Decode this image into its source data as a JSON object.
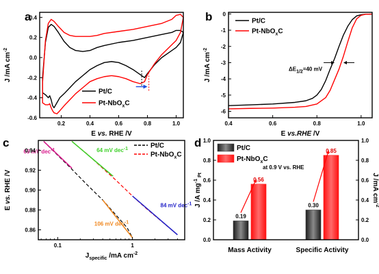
{
  "chart_data": [
    {
      "id": "a",
      "type": "line",
      "panel_label": "a",
      "xlabel": "E vs. RHE /V",
      "ylabel": "J /mA cm-2",
      "xlim": [
        0.05,
        1.05
      ],
      "ylim": [
        -0.6,
        0.45
      ],
      "xticks": [
        0.2,
        0.4,
        0.6,
        0.8,
        1.0
      ],
      "xtick_labels": [
        "0.2",
        "0.4",
        "0.6",
        "0.8",
        "1.0"
      ],
      "yticks": [
        -0.6,
        -0.4,
        -0.2,
        0.0,
        0.2,
        0.4
      ],
      "ytick_labels": [
        "-0.6",
        "-0.4",
        "-0.2",
        "0.0",
        "0.2",
        "0.4"
      ],
      "legend_position": "bottom-right",
      "series": [
        {
          "name": "Pt/C",
          "color": "#000000",
          "x": [
            0.07,
            0.09,
            0.11,
            0.13,
            0.15,
            0.18,
            0.22,
            0.26,
            0.3,
            0.35,
            0.4,
            0.45,
            0.5,
            0.6,
            0.7,
            0.8,
            0.9,
            0.97,
            1.0,
            1.03,
            1.05,
            1.03,
            1.0,
            0.95,
            0.9,
            0.85,
            0.8,
            0.78,
            0.75,
            0.7,
            0.65,
            0.6,
            0.55,
            0.5,
            0.45,
            0.4,
            0.35,
            0.3,
            0.26,
            0.22,
            0.19,
            0.17,
            0.15,
            0.14,
            0.13,
            0.12,
            0.11,
            0.09,
            0.07,
            0.07
          ],
          "y": [
            -0.2,
            0.15,
            0.3,
            0.33,
            0.31,
            0.25,
            0.16,
            0.1,
            0.07,
            0.06,
            0.07,
            0.1,
            0.12,
            0.15,
            0.17,
            0.2,
            0.23,
            0.25,
            0.27,
            0.27,
            0.25,
            0.15,
            0.1,
            0.05,
            0.0,
            -0.07,
            -0.16,
            -0.2,
            -0.17,
            -0.12,
            -0.08,
            -0.05,
            -0.04,
            -0.05,
            -0.08,
            -0.12,
            -0.18,
            -0.24,
            -0.3,
            -0.36,
            -0.4,
            -0.45,
            -0.5,
            -0.48,
            -0.42,
            -0.38,
            -0.4,
            -0.37,
            -0.35,
            -0.2
          ]
        },
        {
          "name": "Pt-NbOxC",
          "color": "#ff0000",
          "x": [
            0.07,
            0.09,
            0.11,
            0.13,
            0.15,
            0.18,
            0.22,
            0.26,
            0.3,
            0.35,
            0.4,
            0.45,
            0.5,
            0.6,
            0.7,
            0.8,
            0.9,
            0.97,
            1.0,
            1.03,
            1.05,
            1.03,
            1.0,
            0.95,
            0.9,
            0.85,
            0.8,
            0.78,
            0.75,
            0.7,
            0.65,
            0.6,
            0.55,
            0.5,
            0.45,
            0.4,
            0.35,
            0.3,
            0.26,
            0.22,
            0.19,
            0.17,
            0.15,
            0.14,
            0.13,
            0.12,
            0.11,
            0.09,
            0.07,
            0.07
          ],
          "y": [
            -0.25,
            0.17,
            0.34,
            0.38,
            0.36,
            0.31,
            0.25,
            0.22,
            0.21,
            0.21,
            0.21,
            0.22,
            0.24,
            0.26,
            0.28,
            0.31,
            0.34,
            0.38,
            0.42,
            0.43,
            0.4,
            0.25,
            0.17,
            0.1,
            0.03,
            -0.06,
            -0.17,
            -0.24,
            -0.26,
            -0.24,
            -0.21,
            -0.19,
            -0.18,
            -0.19,
            -0.21,
            -0.24,
            -0.3,
            -0.36,
            -0.42,
            -0.48,
            -0.53,
            -0.56,
            -0.55,
            -0.53,
            -0.5,
            -0.46,
            -0.47,
            -0.47,
            -0.45,
            -0.25
          ]
        }
      ],
      "markers": [
        {
          "x": 0.76,
          "y_range": [
            -0.28,
            -0.13
          ],
          "color": "#000000"
        },
        {
          "x": 0.81,
          "y_range": [
            -0.33,
            -0.16
          ],
          "color": "#ff0000"
        }
      ],
      "arrow": {
        "x_from": 0.72,
        "x_to": 0.8,
        "y": -0.29,
        "color": "#1f4fe0"
      }
    },
    {
      "id": "b",
      "type": "line",
      "panel_label": "b",
      "xlabel": "E vs.RHE /V",
      "ylabel": "J /mA cm-2",
      "xlim": [
        0.4,
        1.05
      ],
      "ylim": [
        -6.4,
        0.1
      ],
      "xticks": [
        0.4,
        0.6,
        0.8,
        1.0
      ],
      "xtick_labels": [
        "0.4",
        "0.6",
        "0.8",
        "1.0"
      ],
      "yticks": [
        -6,
        -5,
        -4,
        -3,
        -2,
        -1,
        0
      ],
      "ytick_labels": [
        "-6",
        "-5",
        "-4",
        "-3",
        "-2",
        "-1",
        "0"
      ],
      "legend_position": "top-left",
      "annotation": "ΔE1/2=40 mV",
      "annotation_y": -3.0,
      "e_half": [
        0.88,
        0.92
      ],
      "series": [
        {
          "name": "Pt/C",
          "color": "#000000",
          "x": [
            0.4,
            0.5,
            0.6,
            0.7,
            0.75,
            0.78,
            0.8,
            0.82,
            0.84,
            0.86,
            0.88,
            0.9,
            0.92,
            0.94,
            0.96,
            0.98,
            1.0,
            1.02,
            1.05
          ],
          "y": [
            -5.65,
            -5.6,
            -5.55,
            -5.45,
            -5.35,
            -5.2,
            -5.0,
            -4.65,
            -4.1,
            -3.4,
            -2.75,
            -2.0,
            -1.3,
            -0.75,
            -0.35,
            -0.12,
            -0.05,
            -0.02,
            -0.01
          ]
        },
        {
          "name": "Pt-NbOxC",
          "color": "#ff0000",
          "x": [
            0.4,
            0.5,
            0.6,
            0.7,
            0.75,
            0.8,
            0.84,
            0.86,
            0.88,
            0.9,
            0.92,
            0.94,
            0.96,
            0.98,
            1.0,
            1.02,
            1.05
          ],
          "y": [
            -5.85,
            -5.82,
            -5.8,
            -5.75,
            -5.7,
            -5.55,
            -5.15,
            -4.7,
            -4.05,
            -3.4,
            -2.6,
            -1.7,
            -0.85,
            -0.3,
            -0.08,
            -0.02,
            -0.01
          ]
        }
      ]
    },
    {
      "id": "c",
      "type": "line",
      "panel_label": "c",
      "xlabel": "Jspecific /mA cm-2",
      "ylabel": "E vs. RHE /V",
      "xscale": "log",
      "xlim": [
        0.055,
        5.0
      ],
      "ylim": [
        0.85,
        0.95
      ],
      "xticks": [
        0.1,
        1
      ],
      "xtick_labels": [
        "0.1",
        "1"
      ],
      "yticks": [
        0.86,
        0.88,
        0.9,
        0.92,
        0.94
      ],
      "ytick_labels": [
        "0.86",
        "0.88",
        "0.90",
        "0.92",
        "0.94"
      ],
      "legend_position": "top-right",
      "series": [
        {
          "name": "Pt/C",
          "color": "#000000",
          "dash": true,
          "x": [
            0.065,
            0.1,
            0.15,
            0.25,
            0.4,
            0.6,
            0.85,
            1.0
          ],
          "y": [
            0.949,
            0.935,
            0.922,
            0.905,
            0.89,
            0.875,
            0.862,
            0.852
          ]
        },
        {
          "name": "Pt-NbOxC",
          "color": "#ff0000",
          "dash": true,
          "x": [
            0.155,
            0.25,
            0.4,
            0.6,
            1.0,
            1.5,
            2.5,
            4.0
          ],
          "y": [
            0.949,
            0.936,
            0.922,
            0.91,
            0.894,
            0.882,
            0.868,
            0.855
          ]
        }
      ],
      "fits": [
        {
          "label": "69 mV dec-1",
          "color": "#d81b8c",
          "x": [
            0.065,
            0.155
          ],
          "y": [
            0.949,
            0.922
          ]
        },
        {
          "label": "106 mV dec-1",
          "color": "#f08a24",
          "x": [
            0.4,
            1.0
          ],
          "y": [
            0.89,
            0.852
          ]
        },
        {
          "label": "64 mV dec-1",
          "color": "#3fd02a",
          "x": [
            0.155,
            0.55
          ],
          "y": [
            0.949,
            0.914
          ]
        },
        {
          "label": "84 mV dec-1",
          "color": "#2323c8",
          "x": [
            1.0,
            4.0
          ],
          "y": [
            0.894,
            0.855
          ]
        }
      ]
    },
    {
      "id": "d",
      "type": "bar",
      "panel_label": "d",
      "categories": [
        "Mass Activity",
        "Specific Activity"
      ],
      "ylabel": "J /A mg-1 Pt",
      "y2label": "J /mA cm-2",
      "ylim": [
        0.0,
        1.0
      ],
      "yticks": [
        0.0,
        0.2,
        0.4,
        0.6,
        0.8,
        1.0
      ],
      "ytick_labels": [
        "0.0",
        "0.2",
        "0.4",
        "0.6",
        "0.8",
        "1.0"
      ],
      "annotation": "at 0.9 V vs. RHE",
      "legend_position": "top-left",
      "series": [
        {
          "name": "Pt/C",
          "color": "#3a3a3a",
          "values": [
            0.19,
            0.3
          ],
          "labels": [
            "0.19",
            "0.30"
          ]
        },
        {
          "name": "Pt-NbOxC",
          "color": "#ff1a1a",
          "values": [
            0.56,
            0.85
          ],
          "labels": [
            "0.56",
            "0.85"
          ]
        }
      ]
    }
  ]
}
